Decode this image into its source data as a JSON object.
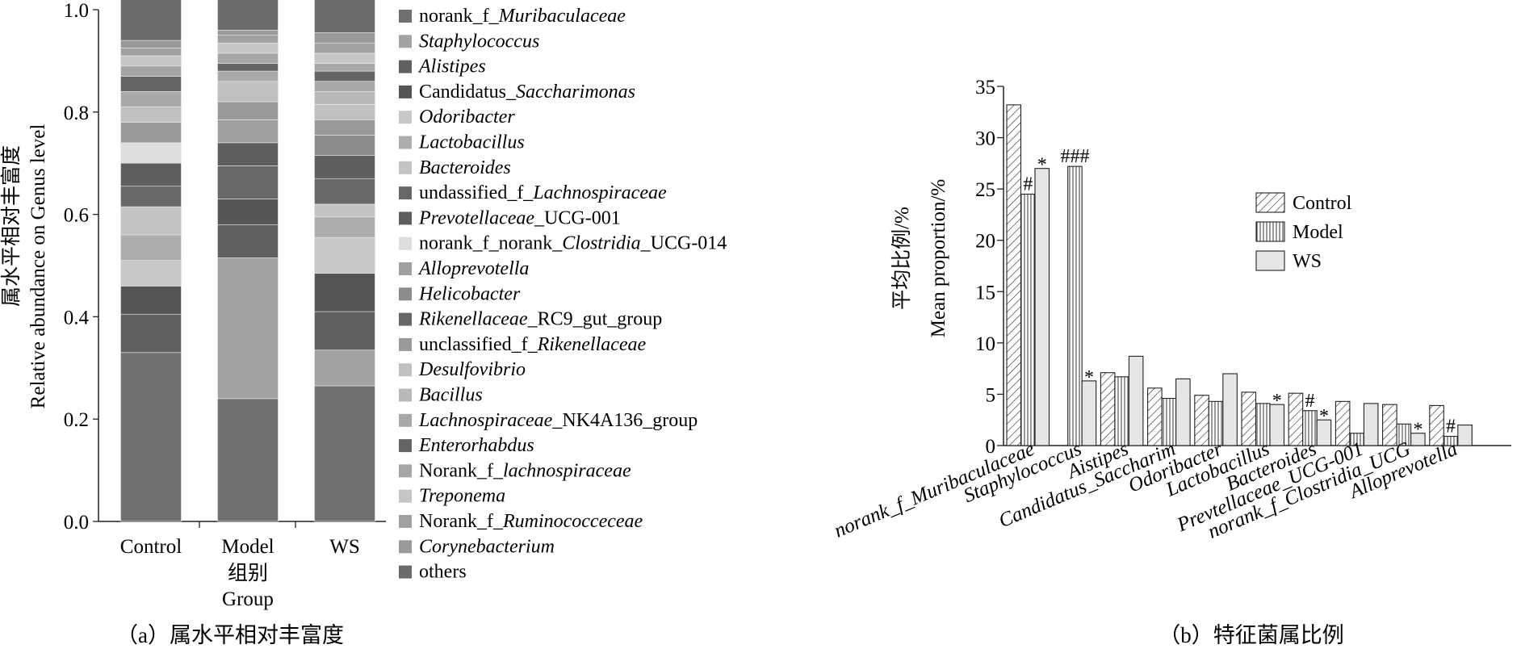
{
  "chart_data": [
    {
      "type": "bar",
      "stacked": true,
      "ylabel_cn": "属水平相对丰富度",
      "ylabel": "Relative abundance on Genus level",
      "xlabel_cn": "组别",
      "xlabel": "Group",
      "ylim": [
        0,
        1.0
      ],
      "yticks": [
        "0.0",
        "0.2",
        "0.4",
        "0.6",
        "0.8",
        "1.0"
      ],
      "caption": "（a）属水平相对丰富度",
      "categories": [
        "Control",
        "Model",
        "WS"
      ],
      "series": [
        {
          "name": "norank_f_Muribaculaceae",
          "prefix": "norank_f_",
          "italic": "Muribaculaceae",
          "suffix": "",
          "color": "#707070",
          "values": [
            0.33,
            0.24,
            0.265
          ]
        },
        {
          "name": "Staphylococcus",
          "prefix": "",
          "italic": "Staphylococcus",
          "suffix": "",
          "color": "#a3a3a3",
          "values": [
            0.0,
            0.275,
            0.07
          ]
        },
        {
          "name": "Alistipes",
          "prefix": "",
          "italic": "Alistipes",
          "suffix": "",
          "color": "#606060",
          "values": [
            0.075,
            0.065,
            0.075
          ]
        },
        {
          "name": "Candidatus_Saccharimonas",
          "prefix": "Candidatus_",
          "italic": "Saccharimonas",
          "suffix": "",
          "color": "#555555",
          "values": [
            0.055,
            0.05,
            0.075
          ]
        },
        {
          "name": "Odoribacter",
          "prefix": "",
          "italic": "Odoribacter",
          "suffix": "",
          "color": "#c8c8c8",
          "values": [
            0.05,
            0.0,
            0.07
          ]
        },
        {
          "name": "Lactobacillus",
          "prefix": "",
          "italic": "Lactobacillus",
          "suffix": "",
          "color": "#adadad",
          "values": [
            0.05,
            0.0,
            0.04
          ]
        },
        {
          "name": "Bacteroides",
          "prefix": "",
          "italic": "Bacteroides",
          "suffix": "",
          "color": "#c4c4c4",
          "values": [
            0.055,
            0.0,
            0.025
          ]
        },
        {
          "name": "undassified_f_Lachnospiraceae",
          "prefix": "undassified_f_",
          "italic": "Lachnospiraceae",
          "suffix": "",
          "color": "#686868",
          "values": [
            0.04,
            0.065,
            0.05
          ]
        },
        {
          "name": "Prevotellaceae_UCG-001",
          "prefix": "",
          "italic": "Prevotellaceae",
          "suffix": "_UCG-001",
          "color": "#5e5e5e",
          "values": [
            0.045,
            0.045,
            0.045
          ]
        },
        {
          "name": "norank_f_norank_Clostridia_UCG-014",
          "prefix": "norank_f_norank_",
          "italic": "Clostridia",
          "suffix": "_UCG-014",
          "color": "#dedede",
          "values": [
            0.04,
            0.0,
            0.0
          ]
        },
        {
          "name": "Alloprevotella",
          "prefix": "",
          "italic": "Alloprevotella",
          "suffix": "",
          "color": "#a0a0a0",
          "values": [
            0.0,
            0.045,
            0.0
          ]
        },
        {
          "name": "Helicobacter",
          "prefix": "",
          "italic": "Helicobacter",
          "suffix": "",
          "color": "#8c8c8c",
          "values": [
            0.0,
            0.0,
            0.04
          ]
        },
        {
          "name": "Rikenellaceae_RC9_gut_group",
          "prefix": "",
          "italic": "Rikenellaceae",
          "suffix": "_RC9_gut_group",
          "color": "#676767",
          "values": [
            0.0,
            0.0,
            0.0
          ]
        },
        {
          "name": "unclassified_f_Rikenellaceae",
          "prefix": "unclassified_f_",
          "italic": "Rikenellaceae",
          "suffix": "",
          "color": "#9a9a9a",
          "values": [
            0.04,
            0.035,
            0.03
          ]
        },
        {
          "name": "Desulfovibrio",
          "prefix": "",
          "italic": "Desulfovibrio",
          "suffix": "",
          "color": "#c0c0c0",
          "values": [
            0.03,
            0.04,
            0.03
          ]
        },
        {
          "name": "Bacillus",
          "prefix": "",
          "italic": "Bacillus",
          "suffix": "",
          "color": "#b9b9b9",
          "values": [
            0.0,
            0.0,
            0.025
          ]
        },
        {
          "name": "Lachnospiraceae_NK4A136_group",
          "prefix": "",
          "italic": "Lachnospiraceae",
          "suffix": "_NK4A136_group",
          "color": "#a9a9a9",
          "values": [
            0.03,
            0.02,
            0.02
          ]
        },
        {
          "name": "Enterorhabdus",
          "prefix": "",
          "italic": "Enterorhabdus",
          "suffix": "",
          "color": "#646464",
          "values": [
            0.03,
            0.015,
            0.02
          ]
        },
        {
          "name": "Norank_f_lachnospiraceae",
          "prefix": "Norank_f_",
          "italic": "lachnospiraceae",
          "suffix": "",
          "color": "#a6a6a6",
          "values": [
            0.02,
            0.02,
            0.015
          ]
        },
        {
          "name": "Treponema",
          "prefix": "",
          "italic": "Treponema",
          "suffix": "",
          "color": "#c6c6c6",
          "values": [
            0.02,
            0.02,
            0.02
          ]
        },
        {
          "name": "Norank_f_Ruminococceceae",
          "prefix": "Norank_f_",
          "italic": "Ruminococceceae",
          "suffix": "",
          "color": "#a1a1a1",
          "values": [
            0.015,
            0.015,
            0.02
          ]
        },
        {
          "name": "Corynebacterium",
          "prefix": "",
          "italic": "Corynebacterium",
          "suffix": "",
          "color": "#999999",
          "values": [
            0.015,
            0.01,
            0.02
          ]
        },
        {
          "name": "others",
          "prefix": "others",
          "italic": "",
          "suffix": "",
          "color": "#6b6b6b",
          "values": [
            0.09,
            0.08,
            0.09
          ]
        }
      ]
    },
    {
      "type": "bar",
      "ylabel_cn": "平均比例/%",
      "ylabel": "Mean proportion/%",
      "ylim": [
        0,
        35
      ],
      "yticks": [
        0,
        5,
        10,
        15,
        20,
        25,
        30,
        35
      ],
      "caption": "（b）特征菌属比例",
      "legend_position": "right",
      "categories": [
        "norank_f_Muribaculaceae",
        "Staphylococcus",
        "Aistipes",
        "Candidatus_Saccharim",
        "Odoribacter",
        "Lactobacillus",
        "Bacteroides",
        "Prevtellaceae_UCG-001",
        "norank_f_Clostridia_UCG",
        "Alloprevotella"
      ],
      "series": [
        {
          "name": "Control",
          "pattern": "diagonal",
          "values": [
            33.2,
            0.0,
            7.1,
            5.6,
            4.9,
            5.2,
            5.1,
            4.3,
            4.0,
            3.9
          ]
        },
        {
          "name": "Model",
          "pattern": "vertical",
          "values": [
            24.5,
            27.2,
            6.7,
            4.6,
            4.3,
            4.1,
            3.4,
            1.2,
            2.1,
            0.9
          ]
        },
        {
          "name": "WS",
          "pattern": "solid",
          "values": [
            27.0,
            6.3,
            8.7,
            6.5,
            7.0,
            4.0,
            2.5,
            4.1,
            1.2,
            2.0
          ]
        }
      ],
      "annotations": [
        {
          "category": 0,
          "series": 1,
          "text": "#"
        },
        {
          "category": 0,
          "series": 2,
          "text": "*"
        },
        {
          "category": 1,
          "series": 1,
          "text": "###"
        },
        {
          "category": 1,
          "series": 2,
          "text": "*"
        },
        {
          "category": 5,
          "series": 2,
          "text": "*"
        },
        {
          "category": 6,
          "series": 1,
          "text": "#"
        },
        {
          "category": 6,
          "series": 2,
          "text": "*"
        },
        {
          "category": 8,
          "series": 2,
          "text": "*"
        },
        {
          "category": 9,
          "series": 1,
          "text": "#"
        }
      ]
    }
  ]
}
